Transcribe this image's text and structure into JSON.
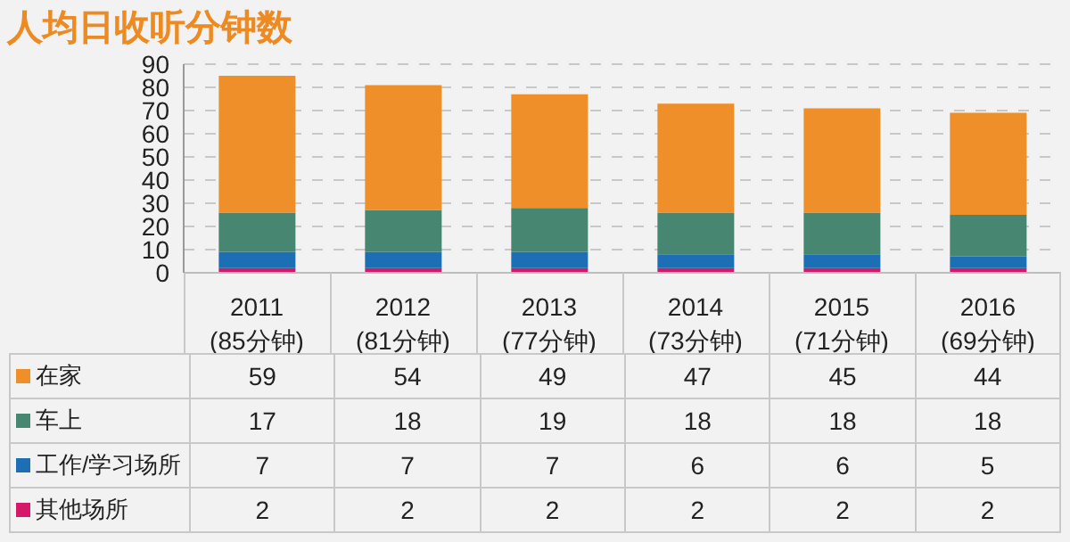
{
  "chart_data": {
    "type": "bar",
    "title": "人均日收听分钟数",
    "stacked": true,
    "categories": [
      "2011",
      "2012",
      "2013",
      "2014",
      "2015",
      "2016"
    ],
    "totals": [
      "(85分钟)",
      "(81分钟)",
      "(77分钟)",
      "(73分钟)",
      "(71分钟)",
      "(69分钟)"
    ],
    "series": [
      {
        "name": "其他场所",
        "color": "#d6186a",
        "values": [
          2,
          2,
          2,
          2,
          2,
          2
        ]
      },
      {
        "name": "工作/学习场所",
        "color": "#1c6fb5",
        "values": [
          7,
          7,
          7,
          6,
          6,
          5
        ]
      },
      {
        "name": "车上",
        "color": "#478670",
        "values": [
          17,
          18,
          19,
          18,
          18,
          18
        ]
      },
      {
        "name": "在家",
        "color": "#ee8f2a",
        "values": [
          59,
          54,
          49,
          47,
          45,
          44
        ]
      }
    ],
    "ylim": [
      0,
      90
    ],
    "yticks": [
      0,
      10,
      20,
      30,
      40,
      50,
      60,
      70,
      80,
      90
    ],
    "grid": "y",
    "legend": "bottom",
    "data_labels": true
  }
}
